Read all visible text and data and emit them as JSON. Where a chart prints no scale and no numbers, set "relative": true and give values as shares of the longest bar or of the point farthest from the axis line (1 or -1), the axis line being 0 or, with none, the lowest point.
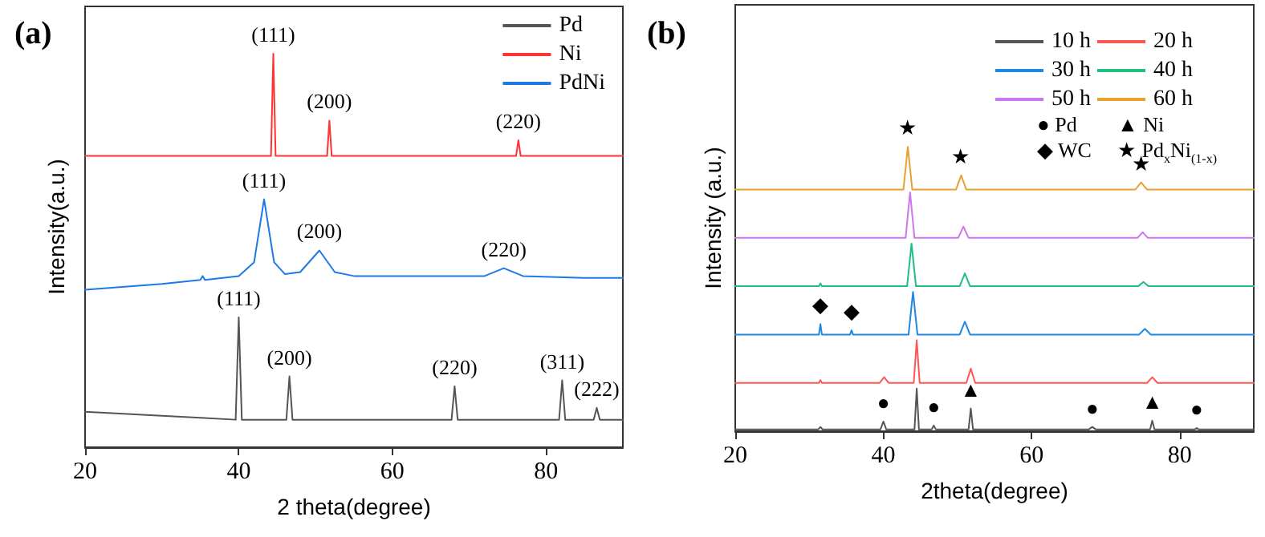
{
  "chart_data": [
    {
      "type": "line",
      "title": "(a)",
      "xlabel": "2 theta(degree)",
      "ylabel": "Intensity(a.u.)",
      "relative": true,
      "xlim": [
        20,
        90
      ],
      "xticks": [
        20,
        40,
        60,
        80
      ],
      "legend": "top right",
      "series": [
        {
          "name": "Pd",
          "color": "#555555",
          "x": [
            20,
            25,
            30,
            35,
            39.6,
            40.0,
            40.4,
            46.2,
            46.6,
            47.0,
            67.7,
            68.1,
            68.5,
            81.7,
            82.1,
            82.5,
            86.2,
            86.6,
            87.0,
            90
          ],
          "values": [
            0.09,
            0.085,
            0.08,
            0.075,
            0.07,
            0.33,
            0.07,
            0.07,
            0.18,
            0.07,
            0.07,
            0.155,
            0.07,
            0.07,
            0.17,
            0.07,
            0.07,
            0.1,
            0.07,
            0.07
          ]
        },
        {
          "name": "Ni",
          "color": "#ff3333",
          "x": [
            20,
            44.2,
            44.5,
            44.8,
            51.5,
            51.8,
            52.1,
            76.1,
            76.4,
            76.7,
            90
          ],
          "values": [
            0.74,
            0.74,
            1.0,
            0.74,
            0.74,
            0.83,
            0.74,
            0.74,
            0.78,
            0.74,
            0.74
          ]
        },
        {
          "name": "PdNi",
          "color": "#1e78e6",
          "x": [
            20,
            30,
            35,
            35.3,
            35.6,
            40,
            42,
            43.3,
            44.6,
            46,
            48,
            50.5,
            52.5,
            55,
            65,
            72,
            74.5,
            77,
            85,
            90
          ],
          "values": [
            0.4,
            0.415,
            0.425,
            0.435,
            0.425,
            0.435,
            0.47,
            0.63,
            0.47,
            0.44,
            0.445,
            0.5,
            0.445,
            0.435,
            0.435,
            0.435,
            0.455,
            0.435,
            0.43,
            0.43
          ]
        }
      ],
      "annotations": [
        {
          "text": "(111)",
          "x": 44.5,
          "y": 1.0
        },
        {
          "text": "(200)",
          "x": 51.8,
          "y": 0.83
        },
        {
          "text": "(220)",
          "x": 76.4,
          "y": 0.78
        },
        {
          "text": "(111)",
          "x": 43.3,
          "y": 0.63
        },
        {
          "text": "(200)",
          "x": 50.5,
          "y": 0.5
        },
        {
          "text": "(220)",
          "x": 74.5,
          "y": 0.455
        },
        {
          "text": "(111)",
          "x": 40,
          "y": 0.33
        },
        {
          "text": "(200)",
          "x": 46.6,
          "y": 0.18
        },
        {
          "text": "(220)",
          "x": 68.1,
          "y": 0.155
        },
        {
          "text": "(311)",
          "x": 82.1,
          "y": 0.17
        },
        {
          "text": "(222)",
          "x": 86.6,
          "y": 0.1
        }
      ]
    },
    {
      "type": "line",
      "title": "(b)",
      "xlabel": "2theta(degree)",
      "ylabel": "Intensity (a.u.)",
      "relative": true,
      "xlim": [
        20,
        90
      ],
      "xticks": [
        20,
        40,
        60,
        80
      ],
      "legend": "top right",
      "series": [
        {
          "name": "10 h",
          "color": "#555555",
          "x": [
            20,
            31.2,
            31.5,
            31.8,
            39.6,
            40.0,
            40.4,
            44.2,
            44.5,
            44.8,
            46.5,
            46.8,
            47.1,
            51.5,
            51.8,
            52.1,
            67.7,
            68.2,
            68.7,
            76.0,
            76.3,
            76.6,
            82.0,
            82.3,
            82.6,
            90
          ],
          "values": [
            0.006,
            0.006,
            0.015,
            0.006,
            0.006,
            0.034,
            0.006,
            0.006,
            0.15,
            0.006,
            0.006,
            0.02,
            0.006,
            0.006,
            0.08,
            0.006,
            0.006,
            0.015,
            0.006,
            0.006,
            0.037,
            0.006,
            0.006,
            0.011,
            0.006,
            0.006
          ]
        },
        {
          "name": "20 h",
          "color": "#ff5555",
          "x": [
            20,
            31.3,
            31.5,
            31.7,
            39.5,
            40.1,
            40.7,
            44.1,
            44.5,
            44.9,
            51.2,
            51.8,
            52.4,
            75.6,
            76.3,
            77,
            90
          ],
          "values": [
            0.17,
            0.17,
            0.18,
            0.17,
            0.17,
            0.19,
            0.17,
            0.17,
            0.32,
            0.17,
            0.17,
            0.22,
            0.17,
            0.17,
            0.19,
            0.17,
            0.17
          ]
        },
        {
          "name": "30 h",
          "color": "#1e88e5",
          "x": [
            20,
            31.3,
            31.5,
            31.7,
            35.5,
            35.7,
            35.9,
            43.4,
            44.0,
            44.6,
            50.3,
            51.0,
            51.7,
            74.5,
            75.3,
            76.1,
            90
          ],
          "values": [
            0.34,
            0.34,
            0.377,
            0.34,
            0.34,
            0.355,
            0.34,
            0.34,
            0.49,
            0.34,
            0.34,
            0.385,
            0.34,
            0.34,
            0.36,
            0.34,
            0.34
          ]
        },
        {
          "name": "40 h",
          "color": "#1fbf7f",
          "x": [
            20,
            31.3,
            31.5,
            31.7,
            43.2,
            43.8,
            44.4,
            50.3,
            51.0,
            51.7,
            74.4,
            75.1,
            75.8,
            90
          ],
          "values": [
            0.51,
            0.51,
            0.52,
            0.51,
            0.51,
            0.66,
            0.51,
            0.51,
            0.555,
            0.51,
            0.51,
            0.525,
            0.51,
            0.51
          ]
        },
        {
          "name": "50 h",
          "color": "#cc77ee",
          "x": [
            20,
            43.0,
            43.6,
            44.2,
            50.1,
            50.8,
            51.5,
            74.3,
            75.0,
            75.7,
            90
          ],
          "values": [
            0.68,
            0.68,
            0.84,
            0.68,
            0.68,
            0.72,
            0.68,
            0.68,
            0.7,
            0.68,
            0.68
          ]
        },
        {
          "name": "60 h",
          "color": "#e8a030",
          "x": [
            20,
            42.7,
            43.3,
            43.9,
            49.8,
            50.5,
            51.2,
            74.0,
            74.8,
            75.6,
            90
          ],
          "values": [
            0.85,
            0.85,
            1.0,
            0.85,
            0.85,
            0.9,
            0.85,
            0.85,
            0.875,
            0.85,
            0.85
          ]
        }
      ],
      "annotations": [
        "● Pd",
        "▲ Ni",
        "◆ WC",
        "★ Pd$_{x}$Ni$_{(1-x)}$",
        {
          "text": "★",
          "x": 43.3,
          "y": 1.0
        },
        {
          "text": "★",
          "x": 50.5,
          "y": 0.9
        },
        {
          "text": "★",
          "x": 74.8,
          "y": 0.875
        },
        {
          "text": "◆",
          "x": 31.5,
          "y": 0.377
        },
        {
          "text": "◆",
          "x": 35.7,
          "y": 0.355
        },
        {
          "text": "●",
          "x": 40,
          "y": 0.034
        },
        {
          "text": "●",
          "x": 46.8,
          "y": 0.02
        },
        {
          "text": "▲",
          "x": 51.8,
          "y": 0.08
        },
        {
          "text": "●",
          "x": 68.2,
          "y": 0.015
        },
        {
          "text": "▲",
          "x": 76.3,
          "y": 0.037
        },
        {
          "text": "●",
          "x": 82.3,
          "y": 0.011
        }
      ]
    }
  ]
}
